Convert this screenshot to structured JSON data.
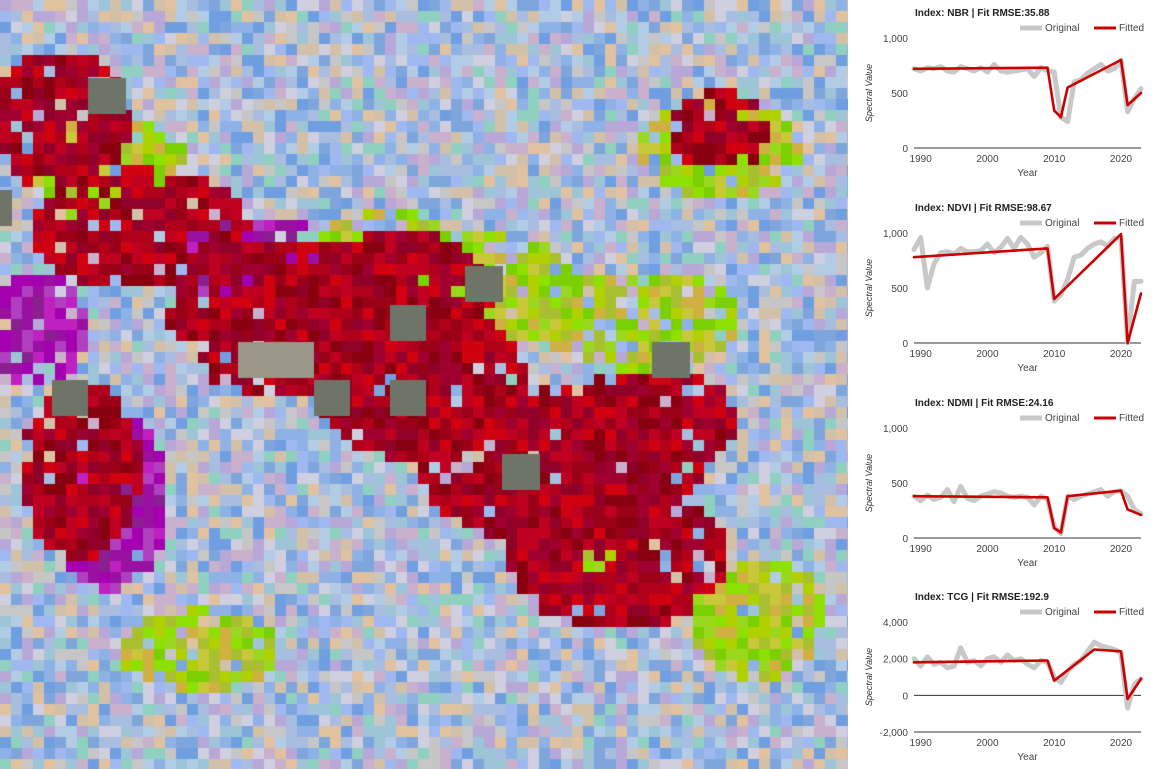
{
  "map": {
    "colors": {
      "background": "#b9c4d6",
      "disturbance_red": "#b0001a",
      "magenta": "#a400b0",
      "lime": "#8ee000",
      "yellow_green": "#c8c83a",
      "pale_blue": "#7ea6dc",
      "gray": "#c6c6c6"
    }
  },
  "charts": [
    {
      "title": "Index: NBR | Fit RMSE:35.88",
      "legend_original": "Original",
      "legend_fitted": "Fitted",
      "ylabel": "Spectral Value",
      "xlabel": "Year",
      "ylim": [
        0,
        1000
      ],
      "yticks": [
        "0",
        "500",
        "1,000"
      ],
      "ytick_values": [
        0,
        500,
        1000
      ],
      "xticks": [
        "1990",
        "2000",
        "2010",
        "2020"
      ],
      "xtick_values": [
        1990,
        2000,
        2010,
        2020
      ],
      "xlim": [
        1989,
        2023
      ]
    },
    {
      "title": "Index: NDVI | Fit RMSE:98.67",
      "legend_original": "Original",
      "legend_fitted": "Fitted",
      "ylabel": "Spectral Value",
      "xlabel": "Year",
      "ylim": [
        0,
        1000
      ],
      "yticks": [
        "0",
        "500",
        "1,000"
      ],
      "ytick_values": [
        0,
        500,
        1000
      ],
      "xticks": [
        "1990",
        "2000",
        "2010",
        "2020"
      ],
      "xtick_values": [
        1990,
        2000,
        2010,
        2020
      ],
      "xlim": [
        1989,
        2023
      ]
    },
    {
      "title": "Index: NDMI | Fit RMSE:24.16",
      "legend_original": "Original",
      "legend_fitted": "Fitted",
      "ylabel": "Spectral Value",
      "xlabel": "Year",
      "ylim": [
        0,
        1000
      ],
      "yticks": [
        "0",
        "500",
        "1,000"
      ],
      "ytick_values": [
        0,
        500,
        1000
      ],
      "xticks": [
        "1990",
        "2000",
        "2010",
        "2020"
      ],
      "xtick_values": [
        1990,
        2000,
        2010,
        2020
      ],
      "xlim": [
        1989,
        2023
      ]
    },
    {
      "title": "Index: TCG | Fit RMSE:192.9",
      "legend_original": "Original",
      "legend_fitted": "Fitted",
      "ylabel": "Spectral Value",
      "xlabel": "Year",
      "ylim": [
        -2000,
        4000
      ],
      "yticks": [
        "-2,000",
        "0",
        "2,000",
        "4,000"
      ],
      "ytick_values": [
        -2000,
        0,
        2000,
        4000
      ],
      "xticks": [
        "1990",
        "2000",
        "2010",
        "2020"
      ],
      "xtick_values": [
        1990,
        2000,
        2010,
        2020
      ],
      "xlim": [
        1989,
        2023
      ]
    }
  ],
  "chart_data": [
    {
      "type": "line",
      "title": "Index: NBR | Fit RMSE:35.88",
      "xlabel": "Year",
      "ylabel": "Spectral Value",
      "ylim": [
        0,
        1000
      ],
      "series": [
        {
          "name": "Original",
          "color": "#c8c8c8",
          "x": [
            1989,
            1990,
            1991,
            1992,
            1993,
            1994,
            1995,
            1996,
            1997,
            1998,
            1999,
            2000,
            2001,
            2002,
            2003,
            2004,
            2005,
            2006,
            2007,
            2008,
            2009,
            2010,
            2011,
            2012,
            2013,
            2014,
            2015,
            2016,
            2017,
            2018,
            2019,
            2020,
            2021,
            2022,
            2023
          ],
          "y": [
            720,
            700,
            730,
            720,
            740,
            700,
            690,
            740,
            720,
            700,
            730,
            690,
            760,
            700,
            690,
            700,
            710,
            720,
            650,
            730,
            700,
            690,
            280,
            240,
            600,
            620,
            680,
            720,
            760,
            700,
            720,
            800,
            330,
            450,
            540
          ]
        },
        {
          "name": "Fitted",
          "color": "#cc0000",
          "x": [
            1989,
            2009,
            2010,
            2011,
            2012,
            2020,
            2021,
            2023
          ],
          "y": [
            720,
            730,
            340,
            280,
            550,
            800,
            390,
            500
          ]
        }
      ]
    },
    {
      "type": "line",
      "title": "Index: NDVI | Fit RMSE:98.67",
      "xlabel": "Year",
      "ylabel": "Spectral Value",
      "ylim": [
        0,
        1000
      ],
      "series": [
        {
          "name": "Original",
          "color": "#c8c8c8",
          "x": [
            1989,
            1990,
            1991,
            1992,
            1993,
            1994,
            1995,
            1996,
            1997,
            1998,
            1999,
            2000,
            2001,
            2002,
            2003,
            2004,
            2005,
            2006,
            2007,
            2008,
            2009,
            2010,
            2011,
            2012,
            2013,
            2014,
            2015,
            2016,
            2017,
            2018,
            2019,
            2020,
            2021,
            2022,
            2023
          ],
          "y": [
            850,
            960,
            500,
            720,
            820,
            830,
            810,
            860,
            830,
            830,
            840,
            900,
            820,
            870,
            950,
            860,
            960,
            900,
            780,
            820,
            880,
            380,
            440,
            580,
            780,
            800,
            860,
            900,
            920,
            880,
            950,
            960,
            0,
            560,
            560
          ]
        },
        {
          "name": "Fitted",
          "color": "#cc0000",
          "x": [
            1989,
            2009,
            2010,
            2020,
            2021,
            2023
          ],
          "y": [
            780,
            860,
            400,
            990,
            0,
            450
          ]
        }
      ]
    },
    {
      "type": "line",
      "title": "Index: NDMI | Fit RMSE:24.16",
      "xlabel": "Year",
      "ylabel": "Spectral Value",
      "ylim": [
        0,
        1000
      ],
      "series": [
        {
          "name": "Original",
          "color": "#c8c8c8",
          "x": [
            1989,
            1990,
            1991,
            1992,
            1993,
            1994,
            1995,
            1996,
            1997,
            1998,
            1999,
            2000,
            2001,
            2002,
            2003,
            2004,
            2005,
            2006,
            2007,
            2008,
            2009,
            2010,
            2011,
            2012,
            2013,
            2014,
            2015,
            2016,
            2017,
            2018,
            2019,
            2020,
            2021,
            2022,
            2023
          ],
          "y": [
            380,
            340,
            390,
            350,
            370,
            440,
            330,
            470,
            360,
            340,
            380,
            400,
            420,
            410,
            380,
            370,
            380,
            370,
            300,
            380,
            350,
            100,
            40,
            380,
            350,
            380,
            400,
            420,
            440,
            380,
            420,
            430,
            380,
            260,
            220
          ]
        },
        {
          "name": "Fitted",
          "color": "#cc0000",
          "x": [
            1989,
            2009,
            2010,
            2011,
            2012,
            2020,
            2021,
            2023
          ],
          "y": [
            380,
            370,
            90,
            50,
            380,
            430,
            260,
            210
          ]
        }
      ]
    },
    {
      "type": "line",
      "title": "Index: TCG | Fit RMSE:192.9",
      "xlabel": "Year",
      "ylabel": "Spectral Value",
      "ylim": [
        -2000,
        4000
      ],
      "series": [
        {
          "name": "Original",
          "color": "#c8c8c8",
          "x": [
            1989,
            1990,
            1991,
            1992,
            1993,
            1994,
            1995,
            1996,
            1997,
            1998,
            1999,
            2000,
            2001,
            2002,
            2003,
            2004,
            2005,
            2006,
            2007,
            2008,
            2009,
            2010,
            2011,
            2012,
            2013,
            2014,
            2015,
            2016,
            2017,
            2018,
            2019,
            2020,
            2021,
            2022,
            2023
          ],
          "y": [
            2000,
            1600,
            2100,
            1700,
            1800,
            1500,
            1600,
            2600,
            1800,
            1900,
            1600,
            2000,
            2100,
            1800,
            2200,
            1900,
            2000,
            1700,
            1500,
            1900,
            1800,
            1000,
            700,
            1300,
            1700,
            1900,
            2400,
            2900,
            2700,
            2600,
            2500,
            2300,
            -700,
            600,
            900
          ]
        },
        {
          "name": "Fitted",
          "color": "#cc0000",
          "x": [
            1989,
            2009,
            2010,
            2016,
            2020,
            2021,
            2023
          ],
          "y": [
            1800,
            1900,
            800,
            2500,
            2400,
            -200,
            900
          ]
        }
      ]
    }
  ]
}
